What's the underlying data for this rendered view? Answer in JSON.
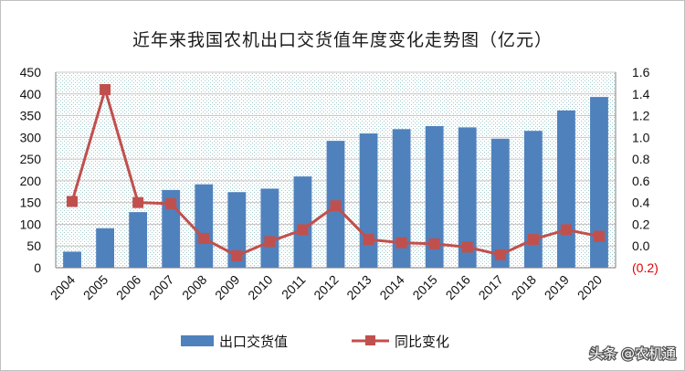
{
  "chart_data": {
    "type": "bar",
    "title": "近年来我国农机出口交货值年度变化走势图（亿元）",
    "categories": [
      "2004",
      "2005",
      "2006",
      "2007",
      "2008",
      "2009",
      "2010",
      "2011",
      "2012",
      "2013",
      "2014",
      "2015",
      "2016",
      "2017",
      "2018",
      "2019",
      "2020"
    ],
    "series": [
      {
        "name": "出口交货值",
        "type": "bar",
        "axis": "left",
        "color": "#4f81bd",
        "values": [
          37,
          91,
          128,
          179,
          192,
          174,
          182,
          210,
          292,
          309,
          319,
          326,
          323,
          297,
          315,
          362,
          393
        ]
      },
      {
        "name": "同比变化",
        "type": "line",
        "axis": "right",
        "color": "#c0504d",
        "values": [
          0.41,
          1.44,
          0.4,
          0.39,
          0.07,
          -0.09,
          0.04,
          0.15,
          0.37,
          0.06,
          0.03,
          0.02,
          -0.01,
          -0.08,
          0.06,
          0.15,
          0.09
        ]
      }
    ],
    "y_left": {
      "min": 0,
      "max": 450,
      "step": 50,
      "ticks": [
        "0",
        "50",
        "100",
        "150",
        "200",
        "250",
        "300",
        "350",
        "400",
        "450"
      ]
    },
    "y_right": {
      "min": -0.2,
      "max": 1.6,
      "step": 0.2,
      "ticks": [
        "(0.2)",
        "0.0",
        "0.2",
        "0.4",
        "0.6",
        "0.8",
        "1.0",
        "1.2",
        "1.4",
        "1.6"
      ]
    },
    "grid": true,
    "legend_position": "bottom"
  },
  "watermark": "头条 @农机通"
}
